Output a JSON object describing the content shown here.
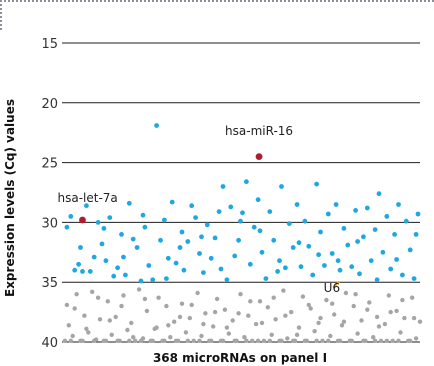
{
  "chart_data": {
    "type": "scatter",
    "title": "",
    "xlabel": "368 microRNAs on panel I",
    "ylabel": "Expression levels (Cq) values",
    "ylim": [
      15,
      40
    ],
    "y_inverted": true,
    "yticks": [
      15,
      20,
      25,
      30,
      35,
      40
    ],
    "xlim": [
      1,
      368
    ],
    "grid": "horizontal",
    "colors": {
      "detected": "#1fa8e0",
      "undetected": "#a5a5a5",
      "highlight": "#b01c2e",
      "reference": "#e8a317"
    },
    "series": [
      {
        "color_key": "detected",
        "points": [
          [
            6,
            30.4
          ],
          [
            10,
            29.5
          ],
          [
            14,
            34.0
          ],
          [
            18,
            33.5
          ],
          [
            22,
            34.1
          ],
          [
            26,
            28.6
          ],
          [
            30,
            34.1
          ],
          [
            34,
            32.9
          ],
          [
            38,
            30.0
          ],
          [
            42,
            31.8
          ],
          [
            46,
            33.2
          ],
          [
            50,
            29.6
          ],
          [
            54,
            34.5
          ],
          [
            58,
            33.8
          ],
          [
            62,
            31.0
          ],
          [
            66,
            34.4
          ],
          [
            70,
            28.4
          ],
          [
            74,
            31.4
          ],
          [
            78,
            32.1
          ],
          [
            82,
            34.9
          ],
          [
            86,
            30.4
          ],
          [
            90,
            33.6
          ],
          [
            94,
            34.8
          ],
          [
            98,
            21.9
          ],
          [
            102,
            31.5
          ],
          [
            106,
            29.8
          ],
          [
            110,
            33.0
          ],
          [
            114,
            28.3
          ],
          [
            118,
            33.4
          ],
          [
            122,
            32.1
          ],
          [
            126,
            34.0
          ],
          [
            130,
            31.6
          ],
          [
            134,
            28.6
          ],
          [
            138,
            29.6
          ],
          [
            142,
            32.6
          ],
          [
            146,
            34.2
          ],
          [
            150,
            30.2
          ],
          [
            154,
            33.0
          ],
          [
            158,
            31.3
          ],
          [
            162,
            29.1
          ],
          [
            166,
            27.0
          ],
          [
            170,
            34.8
          ],
          [
            174,
            28.7
          ],
          [
            178,
            32.8
          ],
          [
            182,
            31.5
          ],
          [
            186,
            29.2
          ],
          [
            190,
            26.6
          ],
          [
            194,
            33.5
          ],
          [
            198,
            30.4
          ],
          [
            202,
            28.1
          ],
          [
            206,
            32.5
          ],
          [
            210,
            34.7
          ],
          [
            214,
            29.1
          ],
          [
            218,
            31.5
          ],
          [
            222,
            34.1
          ],
          [
            226,
            27.0
          ],
          [
            230,
            33.8
          ],
          [
            234,
            30.1
          ],
          [
            238,
            32.1
          ],
          [
            242,
            28.5
          ],
          [
            246,
            33.7
          ],
          [
            250,
            29.9
          ],
          [
            254,
            32.0
          ],
          [
            258,
            34.4
          ],
          [
            262,
            26.8
          ],
          [
            266,
            30.8
          ],
          [
            270,
            33.6
          ],
          [
            274,
            29.3
          ],
          [
            278,
            32.6
          ],
          [
            282,
            28.5
          ],
          [
            286,
            34.0
          ],
          [
            290,
            30.5
          ],
          [
            294,
            31.9
          ],
          [
            298,
            33.7
          ],
          [
            302,
            29.0
          ],
          [
            306,
            34.3
          ],
          [
            310,
            31.2
          ],
          [
            314,
            28.8
          ],
          [
            318,
            33.2
          ],
          [
            322,
            30.6
          ],
          [
            326,
            27.6
          ],
          [
            330,
            32.5
          ],
          [
            334,
            29.5
          ],
          [
            338,
            33.9
          ],
          [
            342,
            31.0
          ],
          [
            346,
            28.5
          ],
          [
            350,
            34.4
          ],
          [
            354,
            29.9
          ],
          [
            358,
            32.3
          ],
          [
            362,
            34.7
          ],
          [
            366,
            29.3
          ],
          [
            20,
            32.1
          ],
          [
            44,
            30.5
          ],
          [
            64,
            32.9
          ],
          [
            84,
            29.4
          ],
          [
            108,
            34.7
          ],
          [
            124,
            30.8
          ],
          [
            144,
            31.2
          ],
          [
            164,
            33.9
          ],
          [
            184,
            29.9
          ],
          [
            204,
            30.7
          ],
          [
            224,
            33.2
          ],
          [
            244,
            31.7
          ],
          [
            264,
            32.7
          ],
          [
            284,
            33.2
          ],
          [
            304,
            31.6
          ],
          [
            324,
            34.8
          ],
          [
            344,
            33.1
          ],
          [
            364,
            31.0
          ]
        ]
      },
      {
        "color_key": "undetected",
        "points": [
          [
            4,
            39.9
          ],
          [
            8,
            38.6
          ],
          [
            12,
            39.5
          ],
          [
            16,
            36.0
          ],
          [
            20,
            39.9
          ],
          [
            24,
            37.8
          ],
          [
            28,
            39.2
          ],
          [
            32,
            35.8
          ],
          [
            36,
            39.8
          ],
          [
            40,
            38.1
          ],
          [
            44,
            39.9
          ],
          [
            48,
            36.6
          ],
          [
            52,
            39.4
          ],
          [
            56,
            37.9
          ],
          [
            60,
            39.9
          ],
          [
            64,
            36.1
          ],
          [
            68,
            39.0
          ],
          [
            72,
            38.4
          ],
          [
            76,
            39.9
          ],
          [
            80,
            35.6
          ],
          [
            84,
            39.7
          ],
          [
            88,
            37.4
          ],
          [
            92,
            39.9
          ],
          [
            96,
            38.9
          ],
          [
            100,
            36.3
          ],
          [
            104,
            39.9
          ],
          [
            108,
            37.0
          ],
          [
            112,
            39.6
          ],
          [
            116,
            38.3
          ],
          [
            120,
            39.9
          ],
          [
            124,
            36.8
          ],
          [
            128,
            39.2
          ],
          [
            132,
            38.0
          ],
          [
            136,
            39.9
          ],
          [
            140,
            35.9
          ],
          [
            144,
            39.5
          ],
          [
            148,
            37.6
          ],
          [
            152,
            39.9
          ],
          [
            156,
            38.7
          ],
          [
            160,
            36.4
          ],
          [
            164,
            39.9
          ],
          [
            168,
            37.3
          ],
          [
            172,
            39.3
          ],
          [
            176,
            38.2
          ],
          [
            180,
            39.9
          ],
          [
            184,
            36.0
          ],
          [
            188,
            39.6
          ],
          [
            192,
            37.8
          ],
          [
            196,
            39.9
          ],
          [
            200,
            38.5
          ],
          [
            204,
            36.6
          ],
          [
            208,
            39.9
          ],
          [
            212,
            37.1
          ],
          [
            216,
            39.4
          ],
          [
            220,
            38.1
          ],
          [
            224,
            39.9
          ],
          [
            228,
            35.7
          ],
          [
            232,
            39.7
          ],
          [
            236,
            37.5
          ],
          [
            240,
            39.9
          ],
          [
            244,
            38.8
          ],
          [
            248,
            36.2
          ],
          [
            252,
            39.9
          ],
          [
            256,
            37.2
          ],
          [
            260,
            39.1
          ],
          [
            264,
            38.4
          ],
          [
            268,
            39.9
          ],
          [
            272,
            36.5
          ],
          [
            276,
            39.5
          ],
          [
            280,
            37.7
          ],
          [
            284,
            39.9
          ],
          [
            288,
            38.6
          ],
          [
            292,
            35.9
          ],
          [
            296,
            39.9
          ],
          [
            300,
            37.0
          ],
          [
            304,
            39.3
          ],
          [
            308,
            38.2
          ],
          [
            312,
            39.9
          ],
          [
            316,
            36.7
          ],
          [
            320,
            39.6
          ],
          [
            324,
            37.9
          ],
          [
            328,
            39.9
          ],
          [
            332,
            38.5
          ],
          [
            336,
            36.1
          ],
          [
            340,
            39.9
          ],
          [
            344,
            37.4
          ],
          [
            348,
            39.2
          ],
          [
            352,
            38.0
          ],
          [
            356,
            39.9
          ],
          [
            360,
            36.3
          ],
          [
            364,
            39.7
          ],
          [
            368,
            38.3
          ],
          [
            6,
            36.9
          ],
          [
            14,
            37.2
          ],
          [
            26,
            38.9
          ],
          [
            38,
            36.3
          ],
          [
            50,
            38.2
          ],
          [
            62,
            37.0
          ],
          [
            74,
            39.6
          ],
          [
            86,
            36.4
          ],
          [
            98,
            38.8
          ],
          [
            110,
            38.6
          ],
          [
            122,
            37.9
          ],
          [
            134,
            36.9
          ],
          [
            146,
            38.5
          ],
          [
            158,
            37.5
          ],
          [
            170,
            38.8
          ],
          [
            182,
            37.6
          ],
          [
            194,
            36.6
          ],
          [
            206,
            38.4
          ],
          [
            218,
            36.3
          ],
          [
            230,
            37.8
          ],
          [
            242,
            39.4
          ],
          [
            254,
            36.9
          ],
          [
            266,
            38.0
          ],
          [
            278,
            36.8
          ],
          [
            290,
            38.3
          ],
          [
            302,
            36.0
          ],
          [
            314,
            37.3
          ],
          [
            326,
            38.7
          ],
          [
            338,
            37.5
          ],
          [
            350,
            36.5
          ],
          [
            362,
            38.0
          ],
          [
            10,
            39.9
          ],
          [
            22,
            39.9
          ],
          [
            34,
            39.9
          ],
          [
            46,
            39.9
          ],
          [
            58,
            39.9
          ],
          [
            70,
            39.9
          ],
          [
            82,
            39.9
          ],
          [
            94,
            39.9
          ],
          [
            106,
            39.9
          ],
          [
            118,
            39.9
          ],
          [
            130,
            39.9
          ],
          [
            142,
            39.9
          ],
          [
            154,
            39.9
          ],
          [
            166,
            39.9
          ],
          [
            178,
            39.9
          ],
          [
            190,
            39.9
          ],
          [
            202,
            39.9
          ],
          [
            214,
            39.9
          ],
          [
            226,
            39.9
          ],
          [
            238,
            39.9
          ],
          [
            250,
            39.9
          ],
          [
            262,
            39.9
          ],
          [
            274,
            39.9
          ],
          [
            286,
            39.9
          ],
          [
            298,
            39.9
          ],
          [
            310,
            39.9
          ],
          [
            322,
            39.9
          ],
          [
            334,
            39.9
          ],
          [
            346,
            39.9
          ],
          [
            358,
            39.9
          ]
        ]
      }
    ],
    "annotations": [
      {
        "label": "hsa-miR-16",
        "x": 203,
        "y": 24.5,
        "color_key": "highlight",
        "text_anchor": "middle",
        "text_dy": -1.8
      },
      {
        "label": "hsa-let-7a",
        "x": 22,
        "y": 29.8,
        "color_key": "highlight",
        "text_anchor": "start",
        "text_dy": -1.5
      },
      {
        "label": "U6",
        "x": 282,
        "y": 35.2,
        "color_key": "reference",
        "text_anchor": "end",
        "text_dy": 0.6
      }
    ]
  }
}
